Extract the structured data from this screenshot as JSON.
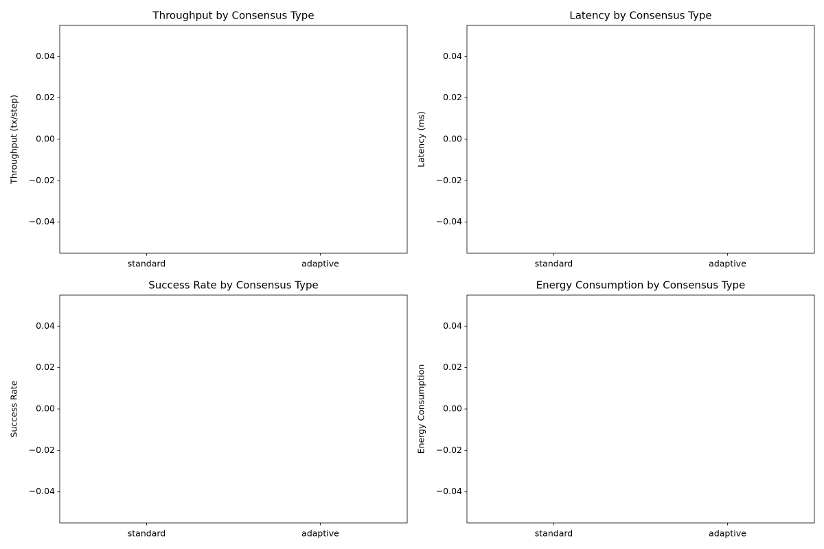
{
  "chart_data": [
    {
      "type": "bar",
      "title": "Throughput by Consensus Type",
      "ylabel": "Throughput (tx/step)",
      "categories": [
        "standard",
        "adaptive"
      ],
      "values": [
        0,
        0
      ],
      "color": "#1f77b4",
      "ylim": [
        -0.055,
        0.055
      ],
      "yticks": [
        {
          "value": -0.04,
          "label": "−0.04"
        },
        {
          "value": -0.02,
          "label": "−0.02"
        },
        {
          "value": 0,
          "label": "0.00"
        },
        0.02,
        0.04
      ]
    },
    {
      "type": "bar",
      "title": "Latency by Consensus Type",
      "ylabel": "Latency (ms)",
      "categories": [
        "standard",
        "adaptive"
      ],
      "values": [
        0,
        0
      ],
      "color": "#1f77b4",
      "ylim": [
        -0.055,
        0.055
      ],
      "yticks": [
        {
          "value": -0.04,
          "label": "−0.04"
        },
        {
          "value": -0.02,
          "label": "−0.02"
        },
        {
          "value": 0,
          "label": "0.00"
        },
        0.02,
        0.04
      ]
    },
    {
      "type": "bar",
      "title": "Success Rate by Consensus Type",
      "ylabel": "Success Rate",
      "categories": [
        "standard",
        "adaptive"
      ],
      "values": [
        0,
        0
      ],
      "color": "#1f77b4",
      "ylim": [
        -0.055,
        0.055
      ],
      "yticks": [
        {
          "value": -0.04,
          "label": "−0.04"
        },
        {
          "value": -0.02,
          "label": "−0.02"
        },
        {
          "value": 0,
          "label": "0.00"
        },
        0.02,
        0.04
      ]
    },
    {
      "type": "bar",
      "title": "Energy Consumption by Consensus Type",
      "ylabel": "Energy Consumption",
      "categories": [
        "standard",
        "adaptive"
      ],
      "values": [
        0,
        0
      ],
      "color": "#1f77b4",
      "ylim": [
        -0.055,
        0.055
      ],
      "yticks": [
        {
          "value": -0.04,
          "label": "−0.04"
        },
        {
          "value": -0.02,
          "label": "−0.02"
        },
        {
          "value": 0,
          "label": "0.00"
        },
        0.02,
        0.04
      ]
    }
  ]
}
